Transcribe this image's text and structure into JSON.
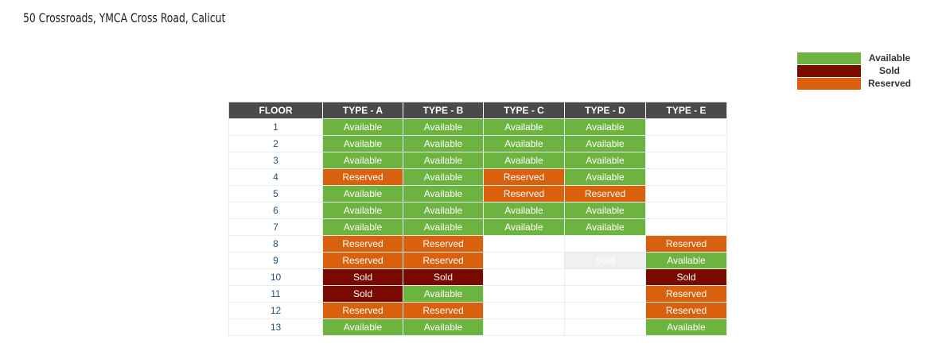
{
  "title": "50 Crossroads, YMCA Cross Road, Calicut",
  "legend": [
    {
      "label": "Available",
      "color": "#6db33f"
    },
    {
      "label": "Sold",
      "color": "#7a0a00"
    },
    {
      "label": "Reserved",
      "color": "#d9610e"
    }
  ],
  "table": {
    "headers": [
      "FLOOR",
      "TYPE - A",
      "TYPE - B",
      "TYPE - C",
      "TYPE - D",
      "TYPE - E"
    ],
    "rows": [
      {
        "floor": "1",
        "cells": [
          "Available",
          "Available",
          "Available",
          "Available",
          ""
        ]
      },
      {
        "floor": "2",
        "cells": [
          "Available",
          "Available",
          "Available",
          "Available",
          ""
        ]
      },
      {
        "floor": "3",
        "cells": [
          "Available",
          "Available",
          "Available",
          "Available",
          ""
        ]
      },
      {
        "floor": "4",
        "cells": [
          "Reserved",
          "Available",
          "Reserved",
          "Available",
          ""
        ]
      },
      {
        "floor": "5",
        "cells": [
          "Available",
          "Available",
          "Reserved",
          "Reserved",
          ""
        ]
      },
      {
        "floor": "6",
        "cells": [
          "Available",
          "Available",
          "Available",
          "Available",
          ""
        ]
      },
      {
        "floor": "7",
        "cells": [
          "Available",
          "Available",
          "Available",
          "Available",
          ""
        ]
      },
      {
        "floor": "8",
        "cells": [
          "Reserved",
          "Reserved",
          "",
          "",
          "Reserved"
        ]
      },
      {
        "floor": "9",
        "cells": [
          "Reserved",
          "Reserved",
          "",
          "Sold*",
          "Available"
        ]
      },
      {
        "floor": "10",
        "cells": [
          "Sold",
          "Sold",
          "",
          "",
          "Sold"
        ]
      },
      {
        "floor": "11",
        "cells": [
          "Sold",
          "Available",
          "",
          "",
          "Reserved"
        ]
      },
      {
        "floor": "12",
        "cells": [
          "Reserved",
          "Reserved",
          "",
          "",
          "Reserved"
        ]
      },
      {
        "floor": "13",
        "cells": [
          "Available",
          "Available",
          "",
          "",
          "Available"
        ]
      }
    ]
  }
}
